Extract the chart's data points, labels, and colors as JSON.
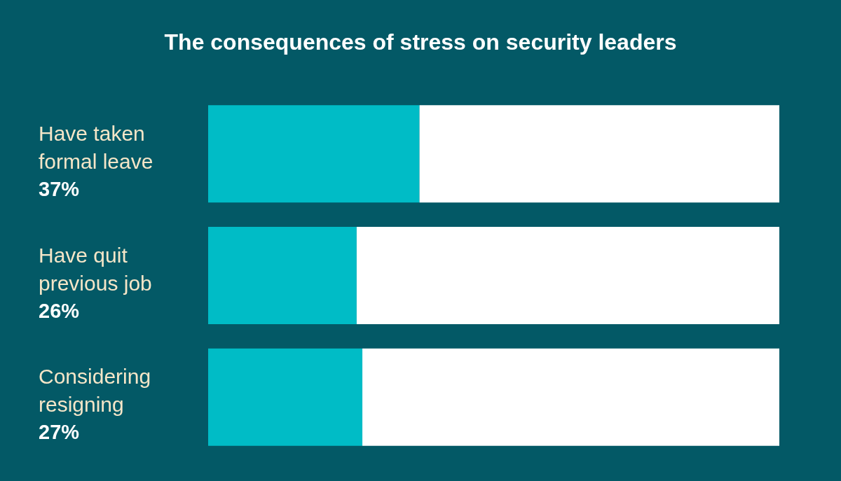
{
  "chart_data": {
    "type": "bar",
    "title": "The consequences of stress on security leaders",
    "categories": [
      "Have taken formal leave",
      "Have quit previous job",
      "Considering resigning"
    ],
    "orientation": "horizontal",
    "stacked": true,
    "tick_labels": "y",
    "series": [
      {
        "color": "#00bcc6",
        "values": [
          37,
          26,
          27
        ],
        "value_labels": [
          "37%",
          "26%",
          "27%"
        ]
      },
      {
        "color": "#ffffff",
        "values": [
          63,
          74,
          73
        ]
      }
    ]
  }
}
